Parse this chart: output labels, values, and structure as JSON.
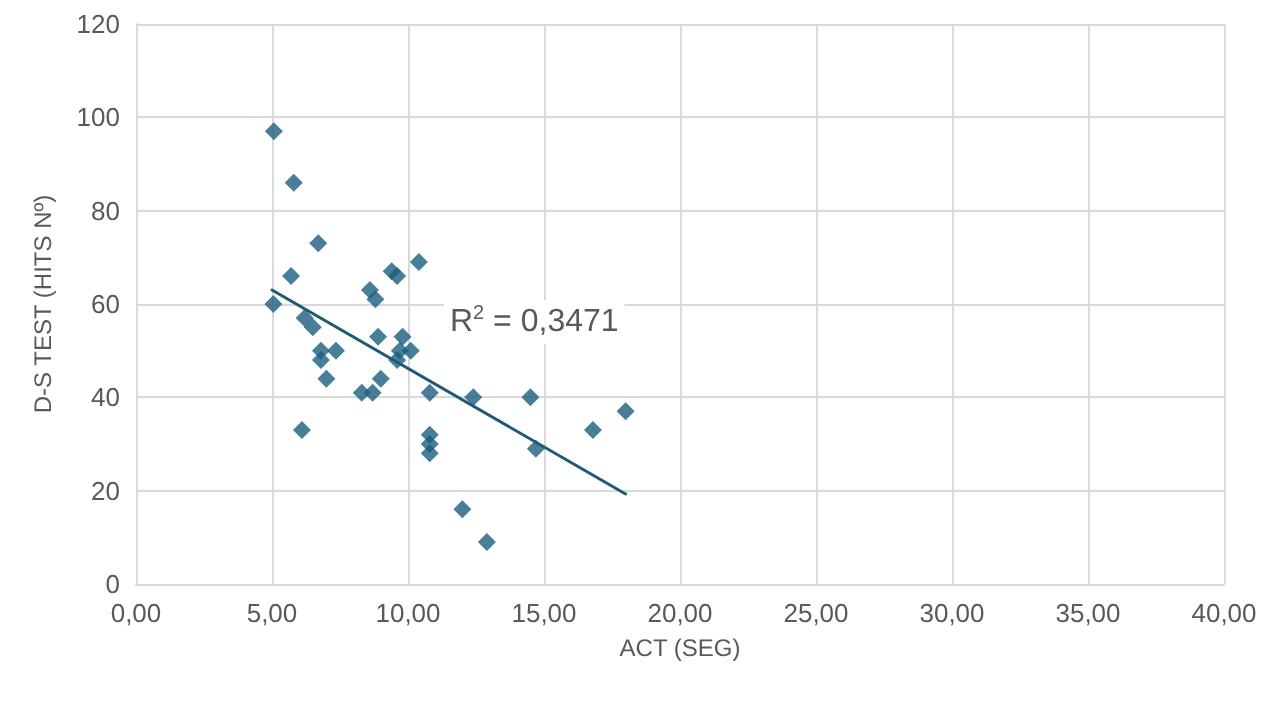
{
  "chart_data": {
    "type": "scatter",
    "xlabel": "ACT (SEG)",
    "ylabel": "D-S TEST (HITS Nº)",
    "annotations": [
      "R$^{2}$ = 0,3471"
    ],
    "xlim": [
      0,
      40
    ],
    "xticks": [
      {
        "value": 0,
        "label": "0,00"
      },
      {
        "value": 5,
        "label": "5,00"
      },
      {
        "value": 10,
        "label": "10,00"
      },
      {
        "value": 15,
        "label": "15,00"
      },
      {
        "value": 20,
        "label": "20,00"
      },
      {
        "value": 25,
        "label": "25,00"
      },
      {
        "value": 30,
        "label": "30,00"
      },
      {
        "value": 35,
        "label": "35,00"
      },
      {
        "value": 40,
        "label": "40,00"
      }
    ],
    "ylim": [
      0,
      120
    ],
    "yticks": [
      0,
      20,
      40,
      60,
      80,
      100,
      120
    ],
    "grid": true,
    "marker": "diamond",
    "series": [
      {
        "color": "#1b5e7e",
        "x": [
          5.07,
          5.8,
          5.7,
          5.05,
          6.7,
          6.1,
          6.2,
          6.5,
          6.8,
          6.8,
          7.0,
          7.35,
          8.3,
          8.6,
          8.8,
          8.9,
          9.0,
          8.7,
          9.4,
          9.6,
          9.8,
          9.7,
          10.1,
          9.6,
          10.4,
          10.8,
          10.8,
          10.8,
          10.8,
          12.0,
          12.4,
          12.9,
          14.5,
          14.7,
          16.8,
          18.0
        ],
        "values": [
          97,
          86,
          66,
          60,
          73,
          33,
          57,
          55,
          50,
          48,
          44,
          50,
          41,
          63,
          61,
          53,
          44,
          41,
          67,
          66,
          53,
          50,
          50,
          48,
          69,
          41,
          32,
          30,
          28,
          16,
          40,
          9,
          40,
          29,
          33,
          37
        ]
      },
      {
        "type": "line",
        "color": "#1f5a75",
        "marker": "none",
        "x": [
          5.0,
          18.0
        ],
        "values": [
          63,
          19.3
        ]
      }
    ]
  }
}
